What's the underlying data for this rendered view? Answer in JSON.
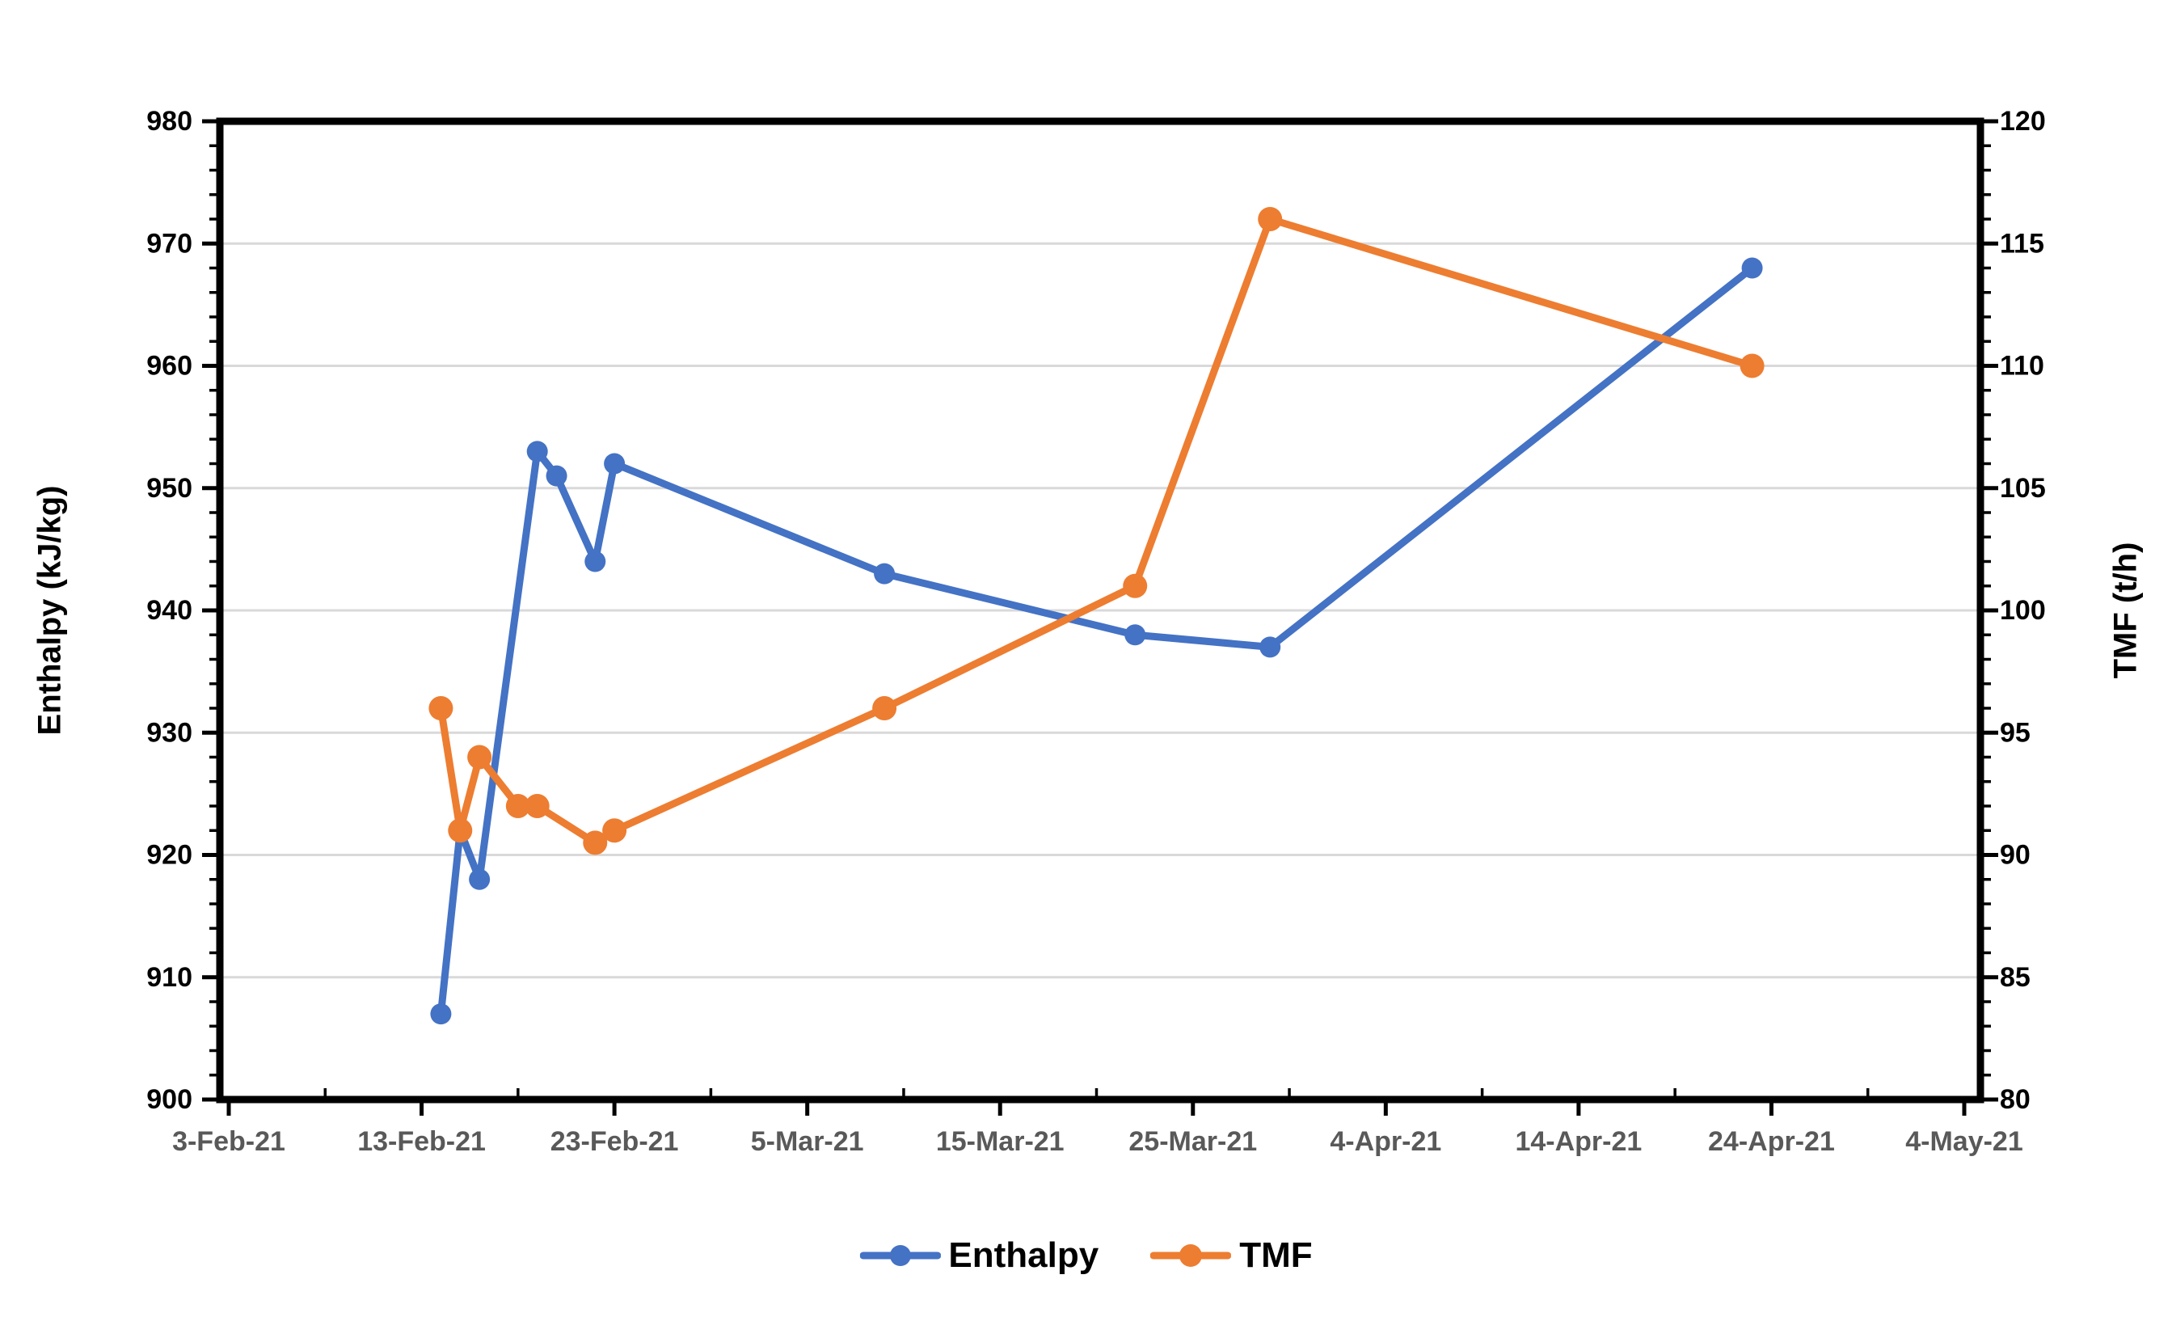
{
  "chart_data": {
    "type": "line",
    "title": "",
    "grid": "horizontal-major",
    "legend_position": "bottom-center",
    "x_axis": {
      "tick_labels": [
        "3-Feb-21",
        "13-Feb-21",
        "23-Feb-21",
        "5-Mar-21",
        "15-Mar-21",
        "25-Mar-21",
        "4-Apr-21",
        "14-Apr-21",
        "24-Apr-21",
        "4-May-21"
      ],
      "minor_tick_days": 5
    },
    "left_axis": {
      "title": "Enthalpy (kJ/kg)",
      "min": 900,
      "max": 980,
      "major_step": 10,
      "minor_step": 2,
      "tick_labels": [
        "900",
        "910",
        "920",
        "930",
        "940",
        "950",
        "960",
        "970",
        "980"
      ]
    },
    "right_axis": {
      "title": "TMF (t/h)",
      "min": 80,
      "max": 120,
      "major_step": 5,
      "minor_step": 1,
      "tick_labels": [
        "80",
        "85",
        "90",
        "95",
        "100",
        "105",
        "110",
        "115",
        "120"
      ]
    },
    "series": [
      {
        "name": "Enthalpy",
        "axis": "left",
        "color": "#4472C4",
        "marker": "circle",
        "marker_radius": 13,
        "line_width": 9,
        "points": [
          {
            "date": "14-Feb-21",
            "value": 907
          },
          {
            "date": "15-Feb-21",
            "value": 922
          },
          {
            "date": "16-Feb-21",
            "value": 918
          },
          {
            "date": "19-Feb-21",
            "value": 953
          },
          {
            "date": "20-Feb-21",
            "value": 951
          },
          {
            "date": "22-Feb-21",
            "value": 944
          },
          {
            "date": "23-Feb-21",
            "value": 952
          },
          {
            "date": "9-Mar-21",
            "value": 943
          },
          {
            "date": "22-Mar-21",
            "value": 938
          },
          {
            "date": "29-Mar-21",
            "value": 937
          },
          {
            "date": "23-Apr-21",
            "value": 968
          }
        ]
      },
      {
        "name": "TMF",
        "axis": "right",
        "color": "#ED7D31",
        "marker": "circle",
        "marker_radius": 15,
        "line_width": 9,
        "points": [
          {
            "date": "14-Feb-21",
            "value": 96
          },
          {
            "date": "15-Feb-21",
            "value": 91
          },
          {
            "date": "16-Feb-21",
            "value": 94
          },
          {
            "date": "18-Feb-21",
            "value": 92
          },
          {
            "date": "19-Feb-21",
            "value": 92
          },
          {
            "date": "22-Feb-21",
            "value": 90.5
          },
          {
            "date": "23-Feb-21",
            "value": 91
          },
          {
            "date": "9-Mar-21",
            "value": 96
          },
          {
            "date": "22-Mar-21",
            "value": 101
          },
          {
            "date": "29-Mar-21",
            "value": 116
          },
          {
            "date": "23-Apr-21",
            "value": 110
          }
        ]
      }
    ]
  },
  "colors": {
    "enthalpy": "#4472C4",
    "tmf": "#ED7D31",
    "gridline": "#D9D9D9",
    "axis": "#000000",
    "date_label": "#595959",
    "background": "#FFFFFF"
  }
}
